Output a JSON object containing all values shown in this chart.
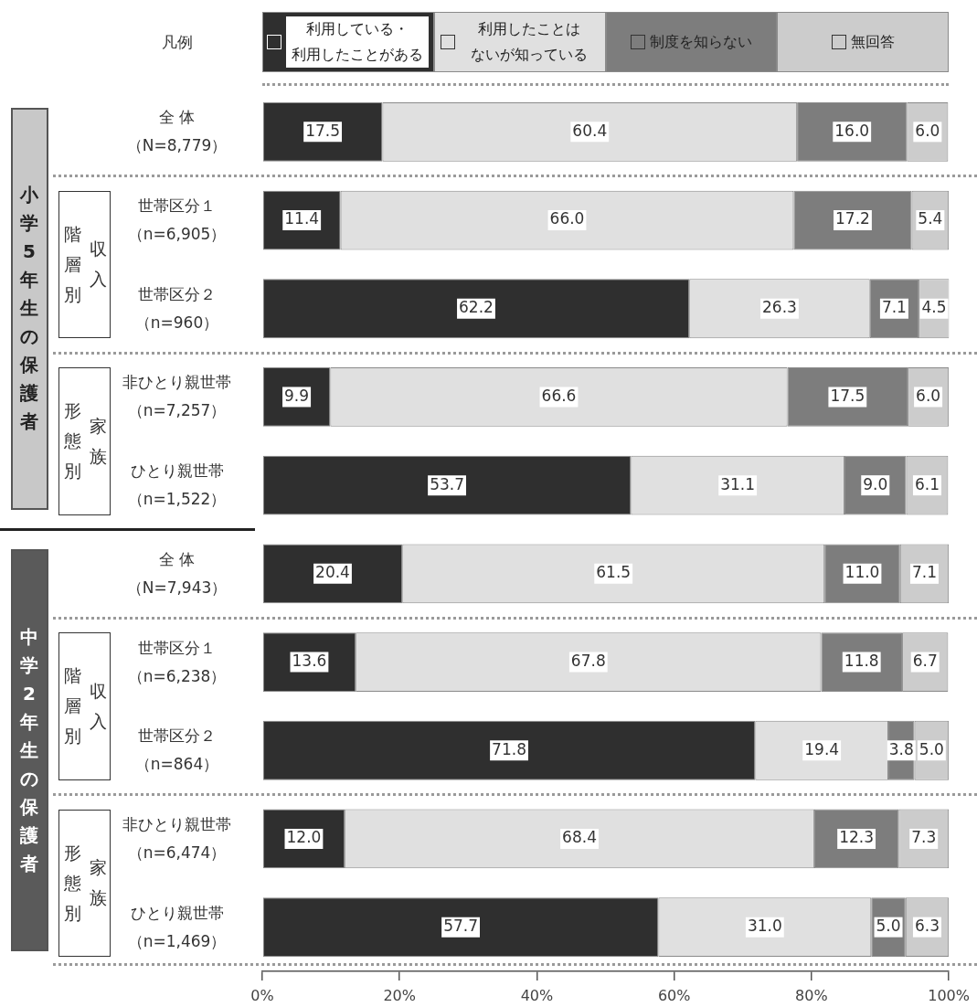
{
  "chart_data": {
    "type": "bar",
    "orientation": "horizontal",
    "stacked": true,
    "legend": "top",
    "legend_title": "凡例",
    "categories": [
      "全 体（N=8,779）",
      "世帯区分１（n=6,905）",
      "世帯区分２（n=960）",
      "非ひとり親世帯（n=7,257）",
      "ひとり親世帯（n=1,522）",
      "全 体（N=7,943）",
      "世帯区分１（n=6,238）",
      "世帯区分２（n=864）",
      "非ひとり親世帯（n=6,474）",
      "ひとり親世帯（n=1,469）"
    ],
    "series": [
      {
        "name": "利用している・利用したことがある",
        "color": "#2f2f2f",
        "values": [
          17.5,
          11.4,
          62.2,
          9.9,
          53.7,
          20.4,
          13.6,
          71.8,
          12.0,
          57.7
        ],
        "value_labels": [
          "17.5",
          "11.4",
          "62.2",
          "9.9",
          "53.7",
          "20.4",
          "13.6",
          "71.8",
          "12.0",
          "57.7"
        ]
      },
      {
        "name": "利用したことはないが知っている",
        "color": "#e0e0e0",
        "values": [
          60.4,
          66.0,
          26.3,
          66.6,
          31.1,
          61.5,
          67.8,
          19.4,
          68.4,
          31.0
        ],
        "value_labels": [
          "60.4",
          "66.0",
          "26.3",
          "66.6",
          "31.1",
          "61.5",
          "67.8",
          "19.4",
          "68.4",
          "31.0"
        ]
      },
      {
        "name": "制度を知らない",
        "color": "#7d7d7d",
        "values": [
          16.0,
          17.2,
          7.1,
          17.5,
          9.0,
          11.0,
          11.8,
          3.8,
          12.3,
          5.0
        ],
        "value_labels": [
          "16.0",
          "17.2",
          "7.1",
          "17.5",
          "9.0",
          "11.0",
          "11.8",
          "3.8",
          "12.3",
          "5.0"
        ]
      },
      {
        "name": "無回答",
        "color": "#cccccc",
        "values": [
          6.0,
          5.4,
          4.5,
          6.0,
          6.1,
          7.1,
          6.7,
          5.0,
          7.3,
          6.3
        ],
        "value_labels": [
          "6.0",
          "5.4",
          "4.5",
          "6.0",
          "6.1",
          "7.1",
          "6.7",
          "5.0",
          "7.3",
          "6.3"
        ]
      }
    ],
    "xlim": [
      0,
      100
    ],
    "xticks": [
      {
        "value": 0,
        "label": "0%"
      },
      {
        "value": 20,
        "label": "20%"
      },
      {
        "value": 40,
        "label": "40%"
      },
      {
        "value": 60,
        "label": "60%"
      },
      {
        "value": 80,
        "label": "80%"
      },
      {
        "value": 100,
        "label": "100%"
      }
    ],
    "annotations": [
      "小学5年生の保護者",
      "収入",
      "階層別",
      "家族",
      "形態別",
      "中学2年生の保護者",
      "収入",
      "階層別",
      "家族",
      "形態別"
    ]
  }
}
